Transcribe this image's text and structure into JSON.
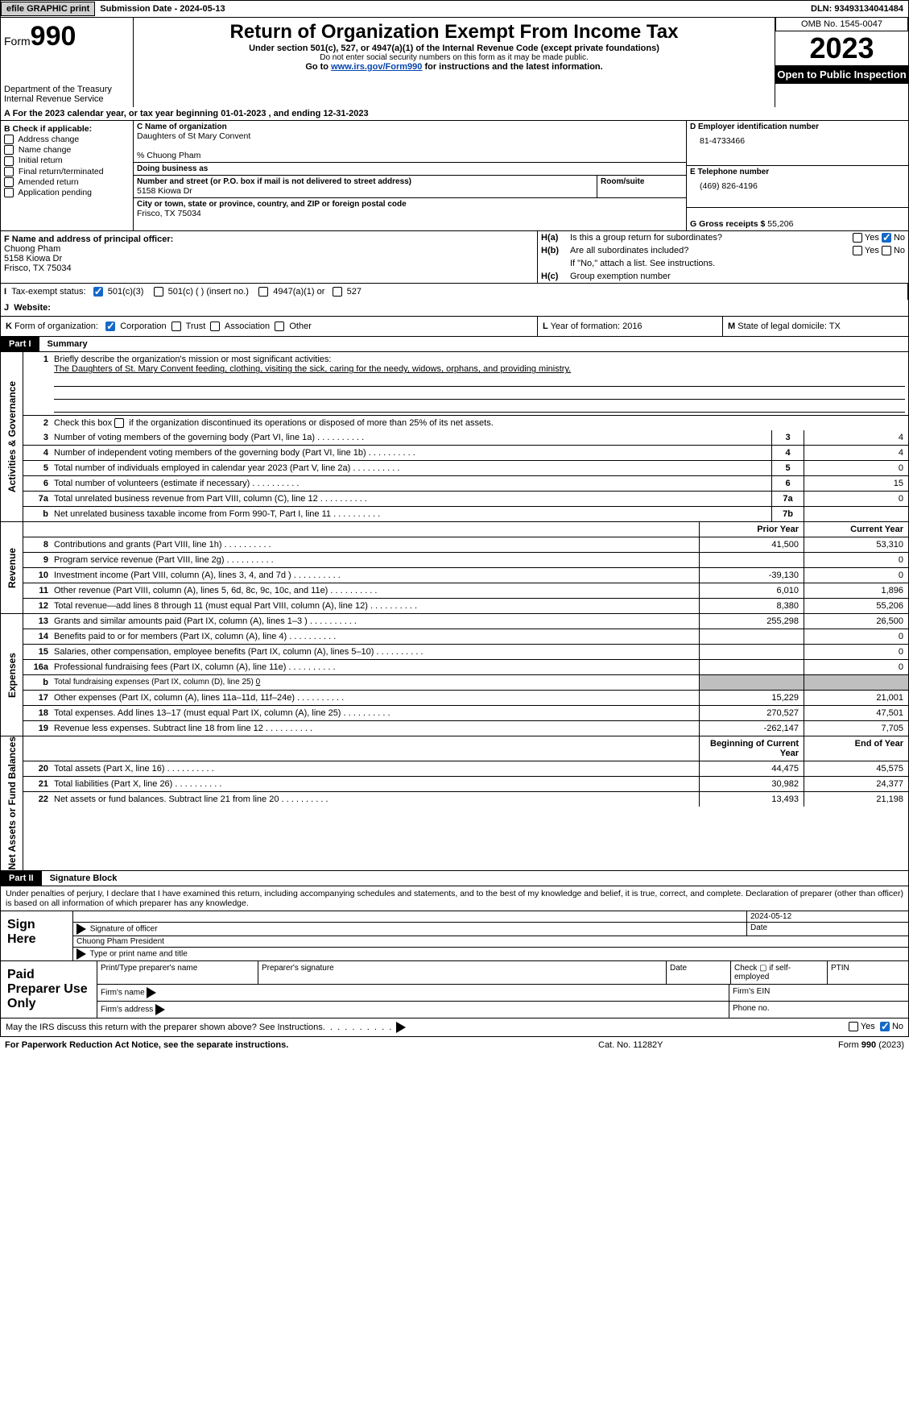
{
  "topbar": {
    "efile": "efile GRAPHIC print",
    "subdate_label": "Submission Date - ",
    "subdate": "2024-05-13",
    "dln_label": "DLN: ",
    "dln": "93493134041484"
  },
  "header": {
    "form_prefix": "Form",
    "form_no": "990",
    "title": "Return of Organization Exempt From Income Tax",
    "sub": "Under section 501(c), 527, or 4947(a)(1) of the Internal Revenue Code (except private foundations)",
    "ssn": "Do not enter social security numbers on this form as it may be made public.",
    "goto_pre": "Go to ",
    "goto_link": "www.irs.gov/Form990",
    "goto_post": " for instructions and the latest information.",
    "dept": "Department of the Treasury",
    "irs": "Internal Revenue Service",
    "omb": "OMB No. 1545-0047",
    "year": "2023",
    "open": "Open to Public Inspection"
  },
  "A": {
    "text": "A For the 2023 calendar year, or tax year beginning 01-01-2023    , and ending 12-31-2023"
  },
  "B": {
    "label": "B Check if applicable:",
    "items": [
      "Address change",
      "Name change",
      "Initial return",
      "Final return/terminated",
      "Amended return",
      "Application pending"
    ]
  },
  "C": {
    "name_label": "C Name of organization",
    "name": "Daughters of St Mary Convent",
    "care": "% Chuong Pham",
    "dba_label": "Doing business as",
    "addr_label": "Number and street (or P.O. box if mail is not delivered to street address)",
    "room_label": "Room/suite",
    "addr": "5158 Kiowa Dr",
    "city_label": "City or town, state or province, country, and ZIP or foreign postal code",
    "city": "Frisco, TX  75034"
  },
  "D": {
    "label": "D Employer identification number",
    "val": "81-4733466"
  },
  "E": {
    "label": "E Telephone number",
    "val": "(469) 826-4196"
  },
  "G": {
    "label": "G Gross receipts $ ",
    "val": "55,206"
  },
  "F": {
    "label": "F  Name and address of principal officer:",
    "name": "Chuong Pham",
    "addr1": "5158 Kiowa Dr",
    "addr2": "Frisco, TX  75034"
  },
  "H": {
    "a": "Is this a group return for subordinates?",
    "b": "Are all subordinates included?",
    "note": "If \"No,\" attach a list. See instructions.",
    "c": "Group exemption number",
    "yes": "Yes",
    "no": "No"
  },
  "I": {
    "label": "Tax-exempt status:",
    "o1": "501(c)(3)",
    "o2": "501(c) (  ) (insert no.)",
    "o3": "4947(a)(1) or",
    "o4": "527"
  },
  "J": {
    "label": "Website:"
  },
  "K": {
    "label": "Form of organization:",
    "o1": "Corporation",
    "o2": "Trust",
    "o3": "Association",
    "o4": "Other"
  },
  "L": {
    "label": "Year of formation: ",
    "val": "2016"
  },
  "M": {
    "label": "State of legal domicile: ",
    "val": "TX"
  },
  "part1": {
    "tag": "Part I",
    "title": "Summary",
    "sections": [
      {
        "tab": "Activities & Governance",
        "rows": [
          {
            "n": "1",
            "type": "mission",
            "lead": "Briefly describe the organization's mission or most significant activities:",
            "text": "The Daughters of St. Mary Convent feeding, clothing, visiting the sick, caring for the needy, widows, orphans, and providing ministry."
          },
          {
            "n": "2",
            "type": "check",
            "text": "Check this box ▢ if the organization discontinued its operations or disposed of more than 25% of its net assets."
          },
          {
            "n": "3",
            "text": "Number of voting members of the governing body (Part VI, line 1a)",
            "box": "3",
            "val": "4"
          },
          {
            "n": "4",
            "text": "Number of independent voting members of the governing body (Part VI, line 1b)",
            "box": "4",
            "val": "4"
          },
          {
            "n": "5",
            "text": "Total number of individuals employed in calendar year 2023 (Part V, line 2a)",
            "box": "5",
            "val": "0"
          },
          {
            "n": "6",
            "text": "Total number of volunteers (estimate if necessary)",
            "box": "6",
            "val": "15"
          },
          {
            "n": "7a",
            "text": "Total unrelated business revenue from Part VIII, column (C), line 12",
            "box": "7a",
            "val": "0"
          },
          {
            "n": "b",
            "text": "Net unrelated business taxable income from Form 990-T, Part I, line 11",
            "box": "7b",
            "val": ""
          }
        ]
      },
      {
        "tab": "Revenue",
        "header": {
          "c1": "Prior Year",
          "c2": "Current Year"
        },
        "rows": [
          {
            "n": "8",
            "text": "Contributions and grants (Part VIII, line 1h)",
            "v1": "41,500",
            "v2": "53,310"
          },
          {
            "n": "9",
            "text": "Program service revenue (Part VIII, line 2g)",
            "v1": "",
            "v2": "0"
          },
          {
            "n": "10",
            "text": "Investment income (Part VIII, column (A), lines 3, 4, and 7d )",
            "v1": "-39,130",
            "v2": "0"
          },
          {
            "n": "11",
            "text": "Other revenue (Part VIII, column (A), lines 5, 6d, 8c, 9c, 10c, and 11e)",
            "v1": "6,010",
            "v2": "1,896"
          },
          {
            "n": "12",
            "text": "Total revenue—add lines 8 through 11 (must equal Part VIII, column (A), line 12)",
            "v1": "8,380",
            "v2": "55,206"
          }
        ]
      },
      {
        "tab": "Expenses",
        "rows": [
          {
            "n": "13",
            "text": "Grants and similar amounts paid (Part IX, column (A), lines 1–3 )",
            "v1": "255,298",
            "v2": "26,500"
          },
          {
            "n": "14",
            "text": "Benefits paid to or for members (Part IX, column (A), line 4)",
            "v1": "",
            "v2": "0"
          },
          {
            "n": "15",
            "text": "Salaries, other compensation, employee benefits (Part IX, column (A), lines 5–10)",
            "v1": "",
            "v2": "0"
          },
          {
            "n": "16a",
            "text": "Professional fundraising fees (Part IX, column (A), line 11e)",
            "v1": "",
            "v2": "0"
          },
          {
            "n": "b",
            "type": "fund",
            "text": "Total fundraising expenses (Part IX, column (D), line 25) ",
            "fval": "0"
          },
          {
            "n": "17",
            "text": "Other expenses (Part IX, column (A), lines 11a–11d, 11f–24e)",
            "v1": "15,229",
            "v2": "21,001"
          },
          {
            "n": "18",
            "text": "Total expenses. Add lines 13–17 (must equal Part IX, column (A), line 25)",
            "v1": "270,527",
            "v2": "47,501"
          },
          {
            "n": "19",
            "text": "Revenue less expenses. Subtract line 18 from line 12",
            "v1": "-262,147",
            "v2": "7,705"
          }
        ]
      },
      {
        "tab": "Net Assets or Fund Balances",
        "header": {
          "c1": "Beginning of Current Year",
          "c2": "End of Year"
        },
        "rows": [
          {
            "n": "20",
            "text": "Total assets (Part X, line 16)",
            "v1": "44,475",
            "v2": "45,575"
          },
          {
            "n": "21",
            "text": "Total liabilities (Part X, line 26)",
            "v1": "30,982",
            "v2": "24,377"
          },
          {
            "n": "22",
            "text": "Net assets or fund balances. Subtract line 21 from line 20",
            "v1": "13,493",
            "v2": "21,198"
          }
        ]
      }
    ]
  },
  "part2": {
    "tag": "Part II",
    "title": "Signature Block",
    "decl": "Under penalties of perjury, I declare that I have examined this return, including accompanying schedules and statements, and to the best of my knowledge and belief, it is true, correct, and complete. Declaration of preparer (other than officer) is based on all information of which preparer has any knowledge.",
    "sign_here": "Sign Here",
    "sig_of_officer": "Signature of officer",
    "date": "Date",
    "sig_date": "2024-05-12",
    "officer_name": "Chuong Pham President",
    "type_name": "Type or print name and title",
    "paid": "Paid Preparer Use Only",
    "p_name": "Print/Type preparer's name",
    "p_sig": "Preparer's signature",
    "p_date": "Date",
    "p_self": "Check ▢ if self-employed",
    "p_ptin": "PTIN",
    "firm_name": "Firm's name",
    "firm_ein": "Firm's EIN",
    "firm_addr": "Firm's address",
    "phone": "Phone no."
  },
  "mayirs": {
    "text": "May the IRS discuss this return with the preparer shown above? See Instructions.",
    "yes": "Yes",
    "no": "No"
  },
  "footer": {
    "l": "For Paperwork Reduction Act Notice, see the separate instructions.",
    "m": "Cat. No. 11282Y",
    "r": "Form 990 (2023)"
  }
}
